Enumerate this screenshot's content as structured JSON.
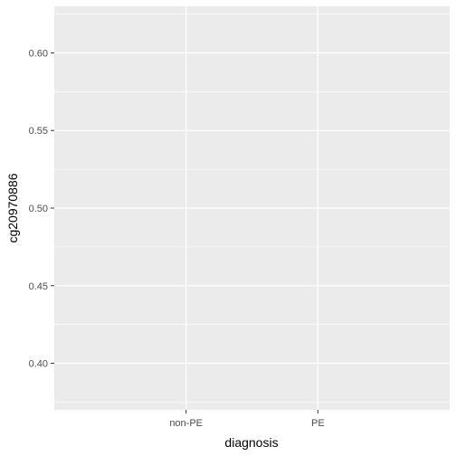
{
  "chart_data": {
    "type": "scatter",
    "categories": [
      "non-PE",
      "PE"
    ],
    "series": [],
    "xlabel": "diagnosis",
    "ylabel": "cg20970886",
    "ylim": [
      0.37,
      0.63
    ],
    "y_ticks": [
      0.4,
      0.45,
      0.5,
      0.55,
      0.6
    ],
    "y_tick_labels": [
      "0.40",
      "0.45",
      "0.50",
      "0.55",
      "0.60"
    ],
    "grid": true,
    "legend": "none",
    "colors": {
      "panel_background": "#EBEBEB",
      "grid": "#FFFFFF",
      "tick_text": "#4D4D4D",
      "tick_mark": "#333333"
    }
  }
}
